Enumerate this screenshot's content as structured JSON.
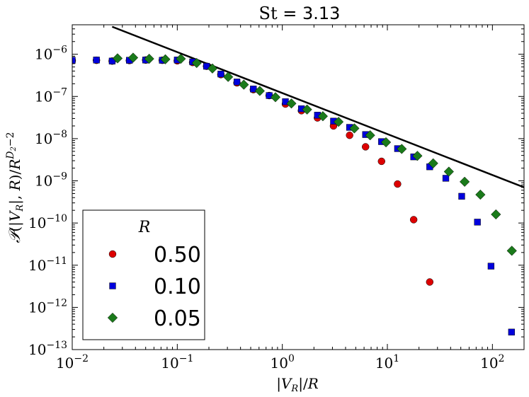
{
  "chart_data": {
    "type": "scatter",
    "title": "St = 3.13",
    "title_parts": {
      "symbol": "St",
      "rest": " = 3.13"
    },
    "xlabel": "|V_R|/R",
    "ylabel": "P(|V_R|, R)/R^(D_2-2)",
    "xscale": "log",
    "yscale": "log",
    "xlim": [
      0.01,
      200
    ],
    "ylim": [
      1e-13,
      5e-06
    ],
    "x_ticks": [
      {
        "value": 0.01,
        "base": "10",
        "exp": "−2"
      },
      {
        "value": 0.1,
        "base": "10",
        "exp": "−1"
      },
      {
        "value": 1,
        "base": "10",
        "exp": "0"
      },
      {
        "value": 10,
        "base": "10",
        "exp": "1"
      },
      {
        "value": 100,
        "base": "10",
        "exp": "2"
      }
    ],
    "y_ticks": [
      {
        "value": 1e-06,
        "base": "10",
        "exp": "−6"
      },
      {
        "value": 1e-07,
        "base": "10",
        "exp": "−7"
      },
      {
        "value": 1e-08,
        "base": "10",
        "exp": "−8"
      },
      {
        "value": 1e-09,
        "base": "10",
        "exp": "−9"
      },
      {
        "value": 1e-10,
        "base": "10",
        "exp": "−10"
      },
      {
        "value": 1e-11,
        "base": "10",
        "exp": "−11"
      },
      {
        "value": 1e-12,
        "base": "10",
        "exp": "−12"
      },
      {
        "value": 1e-13,
        "base": "10",
        "exp": "−13"
      }
    ],
    "reference_line": {
      "name": "power-law reference",
      "color": "#000000",
      "points": [
        [
          0.024,
          4.5e-06
        ],
        [
          200,
          7e-10
        ]
      ]
    },
    "legend": {
      "title": "R",
      "position": "lower-left"
    },
    "series": [
      {
        "name": "0.50",
        "marker": "circle",
        "color": "#dd0000",
        "x": [
          0.01,
          0.017,
          0.024,
          0.035,
          0.05,
          0.072,
          0.1,
          0.14,
          0.19,
          0.26,
          0.37,
          0.53,
          0.75,
          1.07,
          1.52,
          2.16,
          3.07,
          4.37,
          6.2,
          8.8,
          12.5,
          17.8,
          25.3
        ],
        "y": [
          7.1e-07,
          7.2e-07,
          6.9e-07,
          7.1e-07,
          7.3e-07,
          7.2e-07,
          7e-07,
          6.4e-07,
          5.2e-07,
          3.3e-07,
          2.1e-07,
          1.45e-07,
          1.05e-07,
          6.6e-08,
          4.6e-08,
          3.1e-08,
          2e-08,
          1.2e-08,
          6.4e-09,
          2.9e-09,
          8.4e-10,
          1.2e-10,
          4e-12
        ]
      },
      {
        "name": "0.10",
        "marker": "square",
        "color": "#0000dd",
        "x": [
          0.01,
          0.017,
          0.024,
          0.035,
          0.05,
          0.072,
          0.1,
          0.14,
          0.19,
          0.26,
          0.37,
          0.53,
          0.75,
          1.07,
          1.52,
          2.16,
          3.07,
          4.37,
          6.2,
          8.8,
          12.5,
          17.8,
          25.3,
          36,
          51,
          72,
          97,
          152
        ],
        "y": [
          7.2e-07,
          7.3e-07,
          6.9e-07,
          7.2e-07,
          7.3e-07,
          7.2e-07,
          7.3e-07,
          6.6e-07,
          5.2e-07,
          3.4e-07,
          2.2e-07,
          1.5e-07,
          1.05e-07,
          7.5e-08,
          5.1e-08,
          3.6e-08,
          2.6e-08,
          1.85e-08,
          1.25e-08,
          8.5e-09,
          5.8e-09,
          3.7e-09,
          2.15e-09,
          1.15e-09,
          4.3e-10,
          1.05e-10,
          9.5e-12,
          2.6e-13
        ]
      },
      {
        "name": "0.05",
        "marker": "diamond",
        "color": "#1a7a1a",
        "x": [
          0.027,
          0.038,
          0.054,
          0.077,
          0.108,
          0.153,
          0.216,
          0.305,
          0.43,
          0.61,
          0.86,
          1.22,
          1.72,
          2.43,
          3.43,
          4.85,
          6.85,
          9.7,
          13.7,
          19.3,
          27.3,
          38.5,
          54.4,
          76.8,
          108,
          153
        ],
        "y": [
          8e-07,
          8.3e-07,
          7.8e-07,
          7.6e-07,
          7.8e-07,
          6.2e-07,
          4.6e-07,
          2.9e-07,
          1.9e-07,
          1.35e-07,
          9.6e-08,
          6.8e-08,
          4.9e-08,
          3.4e-08,
          2.5e-08,
          1.75e-08,
          1.2e-08,
          8.2e-09,
          5.7e-09,
          3.9e-09,
          2.6e-09,
          1.65e-09,
          9.5e-10,
          4.7e-10,
          1.6e-10,
          2.2e-11
        ]
      }
    ]
  }
}
